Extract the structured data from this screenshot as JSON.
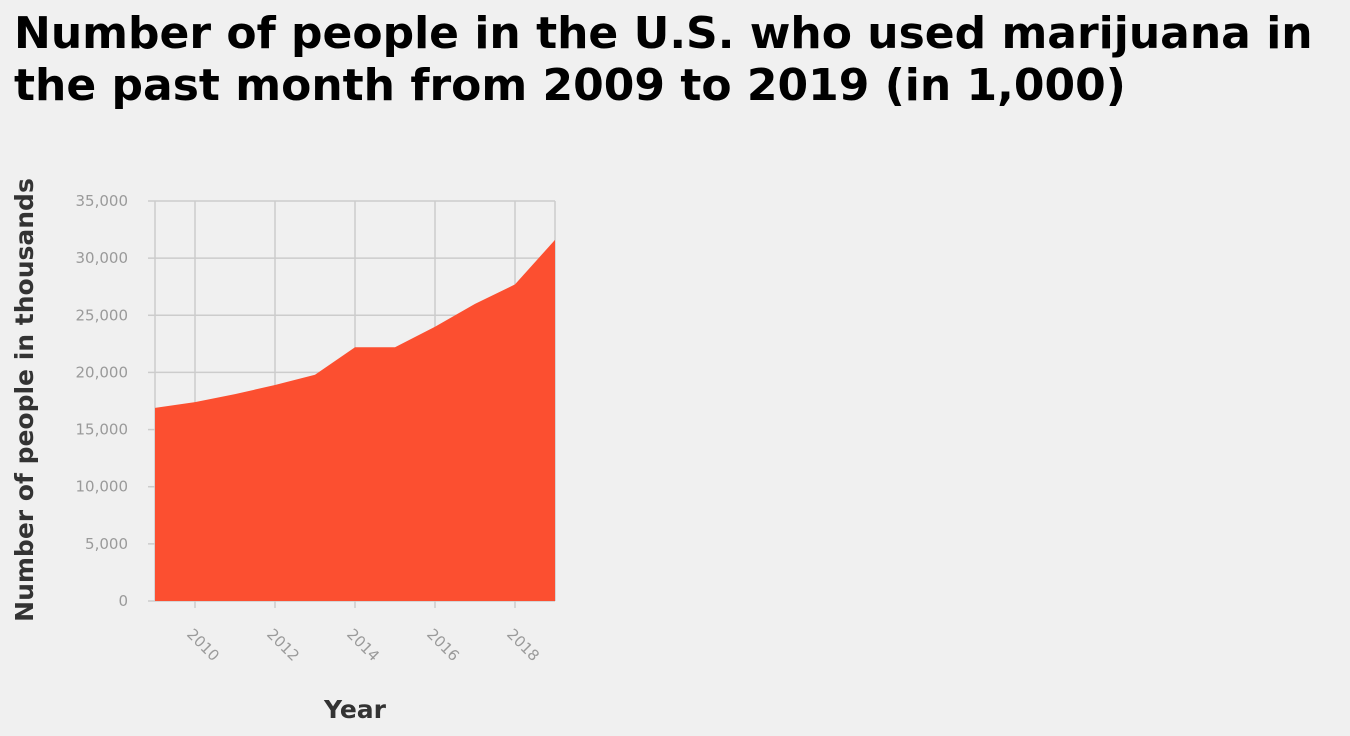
{
  "chart_data": {
    "type": "area",
    "title": "Number of people in the U.S. who used marijuana in the past month from 2009 to 2019 (in 1,000)",
    "xlabel": "Year",
    "ylabel": "Number of people in thousands",
    "x": [
      2009,
      2010,
      2011,
      2012,
      2013,
      2014,
      2015,
      2016,
      2017,
      2018,
      2019
    ],
    "values": [
      16900,
      17400,
      18100,
      18900,
      19800,
      22200,
      22200,
      24000,
      26000,
      27700,
      31600
    ],
    "xlim": [
      2009,
      2019
    ],
    "ylim": [
      0,
      35000
    ],
    "x_ticks": [
      "2010",
      "2012",
      "2014",
      "2016",
      "2018"
    ],
    "y_ticks": [
      "0",
      "5,000",
      "10,000",
      "15,000",
      "20,000",
      "25,000",
      "30,000",
      "35,000"
    ],
    "grid": true,
    "color": "#fc4f30"
  }
}
